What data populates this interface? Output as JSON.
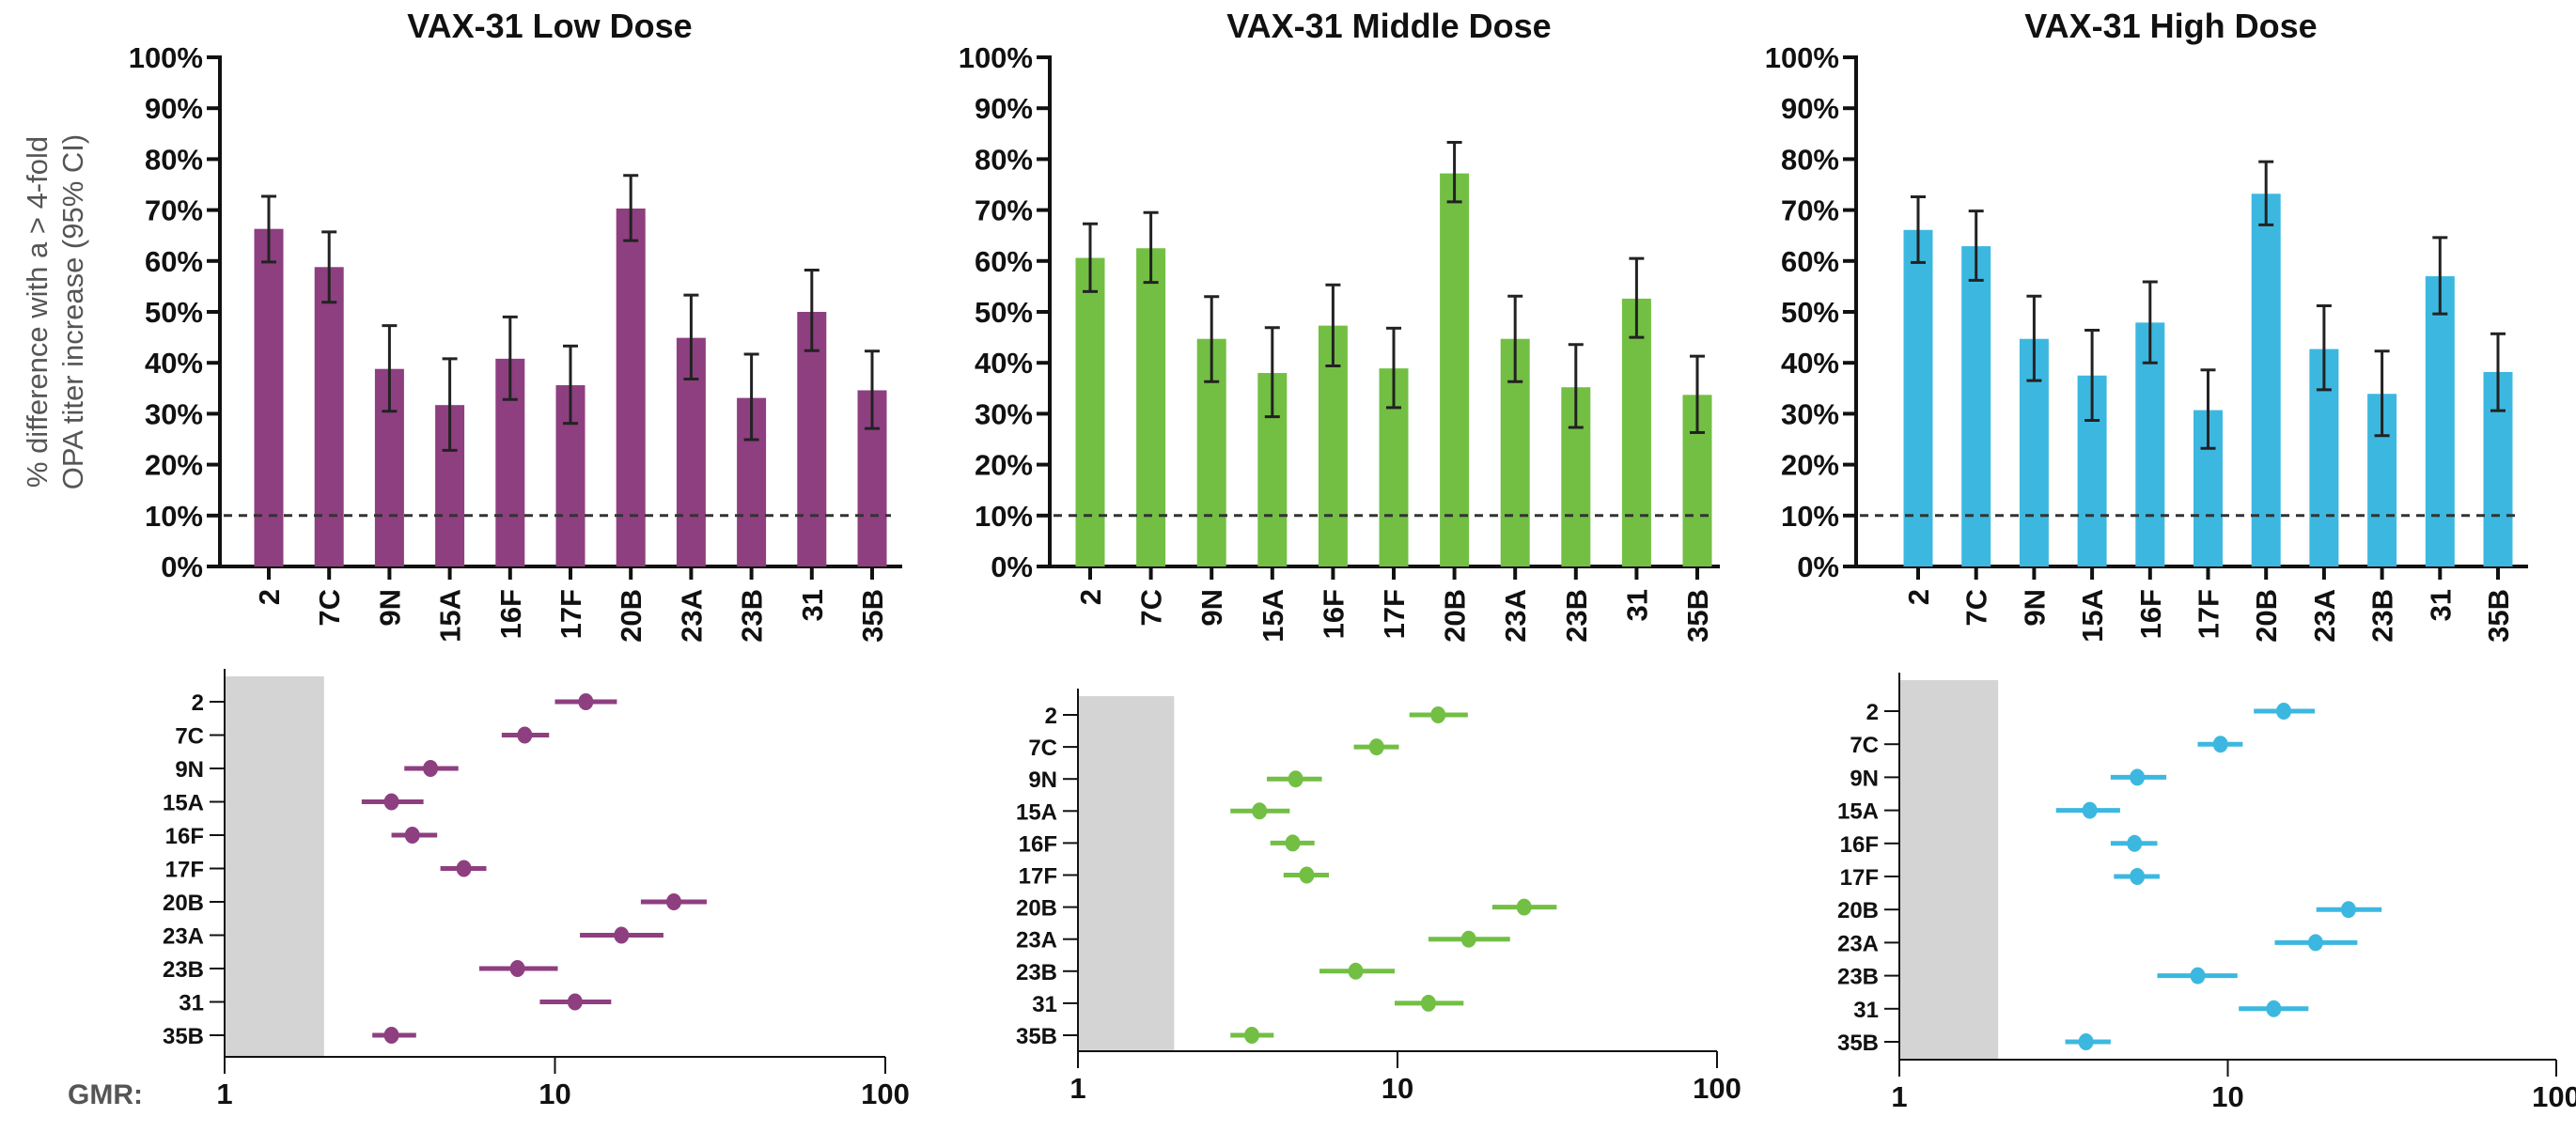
{
  "chart_data": [
    {
      "type": "bar",
      "title": "VAX-31 Low Dose",
      "ylabel": [
        "% difference with a > 4-fold",
        "OPA titer increase (95% CI)"
      ],
      "categories": [
        "2",
        "7C",
        "9N",
        "15A",
        "16F",
        "17F",
        "20B",
        "23A",
        "23B",
        "31",
        "35B"
      ],
      "values": [
        66.3,
        58.8,
        38.8,
        31.7,
        40.8,
        35.6,
        70.3,
        44.9,
        33.1,
        50.0,
        34.6
      ],
      "ci_lower": [
        59.8,
        51.9,
        30.5,
        22.8,
        32.8,
        28.1,
        64.0,
        36.8,
        24.9,
        42.4,
        27.1
      ],
      "ci_upper": [
        72.7,
        65.7,
        47.3,
        40.8,
        49.0,
        43.3,
        76.8,
        53.3,
        41.7,
        58.2,
        42.3
      ],
      "ylim": [
        0,
        100
      ],
      "yticks": [
        0,
        10,
        20,
        30,
        40,
        50,
        60,
        70,
        80,
        90,
        100
      ],
      "ytick_labels": [
        "0%",
        "10%",
        "20%",
        "30%",
        "40%",
        "50%",
        "60%",
        "70%",
        "80%",
        "90%",
        "100%"
      ],
      "reference_line": 10,
      "color": "#8e3f80",
      "grid": false
    },
    {
      "type": "bar",
      "title": "VAX-31 Middle Dose",
      "categories": [
        "2",
        "7C",
        "9N",
        "15A",
        "16F",
        "17F",
        "20B",
        "23A",
        "23B",
        "31",
        "35B"
      ],
      "values": [
        60.6,
        62.5,
        44.7,
        38.0,
        47.3,
        38.9,
        77.2,
        44.7,
        35.2,
        52.6,
        33.7
      ],
      "ci_lower": [
        54.0,
        55.8,
        36.3,
        29.4,
        39.4,
        31.2,
        71.6,
        36.3,
        27.3,
        45.0,
        26.3
      ],
      "ci_upper": [
        67.3,
        69.5,
        53.0,
        46.9,
        55.3,
        46.8,
        83.3,
        53.1,
        43.6,
        60.5,
        41.3
      ],
      "ylim": [
        0,
        100
      ],
      "yticks": [
        0,
        10,
        20,
        30,
        40,
        50,
        60,
        70,
        80,
        90,
        100
      ],
      "ytick_labels": [
        "0%",
        "10%",
        "20%",
        "30%",
        "40%",
        "50%",
        "60%",
        "70%",
        "80%",
        "90%",
        "100%"
      ],
      "reference_line": 10,
      "color": "#72bf44",
      "grid": false
    },
    {
      "type": "bar",
      "title": "VAX-31 High Dose",
      "categories": [
        "2",
        "7C",
        "9N",
        "15A",
        "16F",
        "17F",
        "20B",
        "23A",
        "23B",
        "31",
        "35B"
      ],
      "values": [
        66.1,
        62.9,
        44.7,
        37.5,
        47.9,
        30.7,
        73.2,
        42.7,
        33.9,
        57.0,
        38.2
      ],
      "ci_lower": [
        59.7,
        56.2,
        36.5,
        28.7,
        40.0,
        23.2,
        67.1,
        34.7,
        25.7,
        49.6,
        30.6
      ],
      "ci_upper": [
        72.6,
        69.8,
        53.1,
        46.4,
        55.9,
        38.6,
        79.5,
        51.2,
        42.3,
        64.6,
        45.7
      ],
      "ylim": [
        0,
        100
      ],
      "yticks": [
        0,
        10,
        20,
        30,
        40,
        50,
        60,
        70,
        80,
        90,
        100
      ],
      "ytick_labels": [
        "0%",
        "10%",
        "20%",
        "30%",
        "40%",
        "50%",
        "60%",
        "70%",
        "80%",
        "90%",
        "100%"
      ],
      "reference_line": 10,
      "color": "#3cb8e0",
      "grid": false
    },
    {
      "type": "scatter",
      "xlabel": "GMR:",
      "xscale": "log",
      "xlim": [
        1,
        100
      ],
      "xticks": [
        1,
        10,
        100
      ],
      "xtick_labels": [
        "1",
        "10",
        "100"
      ],
      "shaded_region": [
        1,
        2
      ],
      "categories": [
        "2",
        "7C",
        "9N",
        "15A",
        "16F",
        "17F",
        "20B",
        "23A",
        "23B",
        "31",
        "35B"
      ],
      "values": [
        12.4,
        8.1,
        4.2,
        3.2,
        3.7,
        5.3,
        22.9,
        15.9,
        7.7,
        11.5,
        3.2
      ],
      "ci_lower": [
        10.0,
        6.9,
        3.5,
        2.6,
        3.2,
        4.5,
        18.2,
        11.9,
        5.9,
        9.0,
        2.8
      ],
      "ci_upper": [
        15.4,
        9.6,
        5.1,
        4.0,
        4.4,
        6.2,
        28.8,
        21.3,
        10.2,
        14.8,
        3.8
      ],
      "color": "#8e3f80"
    },
    {
      "type": "scatter",
      "xscale": "log",
      "xlim": [
        1,
        100
      ],
      "xticks": [
        1,
        10,
        100
      ],
      "xtick_labels": [
        "1",
        "10",
        "100"
      ],
      "shaded_region": [
        1,
        2
      ],
      "categories": [
        "2",
        "7C",
        "9N",
        "15A",
        "16F",
        "17F",
        "20B",
        "23A",
        "23B",
        "31",
        "35B"
      ],
      "values": [
        13.4,
        8.6,
        4.8,
        3.7,
        4.7,
        5.2,
        24.9,
        16.7,
        7.4,
        12.5,
        3.5
      ],
      "ci_lower": [
        10.9,
        7.3,
        3.9,
        3.0,
        4.0,
        4.4,
        19.8,
        12.5,
        5.7,
        9.8,
        3.0
      ],
      "ci_upper": [
        16.6,
        10.1,
        5.8,
        4.6,
        5.5,
        6.1,
        31.5,
        22.5,
        9.8,
        16.1,
        4.1
      ],
      "color": "#72bf44"
    },
    {
      "type": "scatter",
      "xscale": "log",
      "xlim": [
        1,
        100
      ],
      "xticks": [
        1,
        10,
        100
      ],
      "xtick_labels": [
        "1",
        "10",
        "100"
      ],
      "shaded_region": [
        1,
        2
      ],
      "categories": [
        "2",
        "7C",
        "9N",
        "15A",
        "16F",
        "17F",
        "20B",
        "23A",
        "23B",
        "31",
        "35B"
      ],
      "values": [
        14.8,
        9.5,
        5.3,
        3.8,
        5.2,
        5.3,
        23.3,
        18.5,
        8.1,
        13.8,
        3.7
      ],
      "ci_lower": [
        12.0,
        8.1,
        4.4,
        3.0,
        4.4,
        4.5,
        18.6,
        13.9,
        6.1,
        10.8,
        3.2
      ],
      "ci_upper": [
        18.4,
        11.1,
        6.5,
        4.7,
        6.1,
        6.2,
        29.4,
        24.8,
        10.7,
        17.6,
        4.4
      ],
      "color": "#3cb8e0"
    }
  ]
}
